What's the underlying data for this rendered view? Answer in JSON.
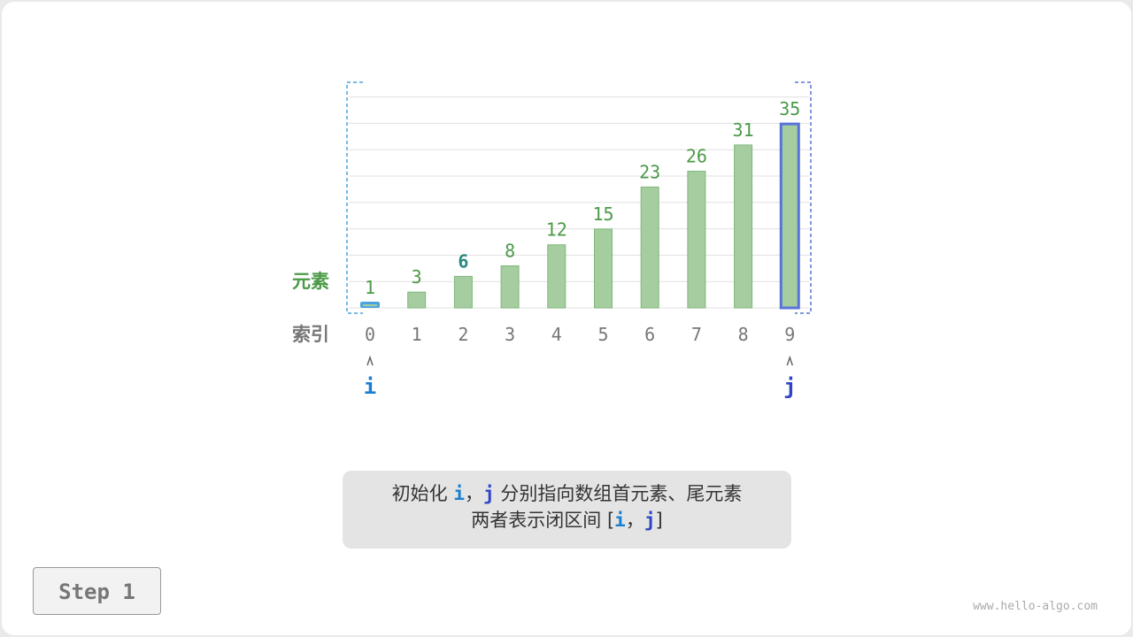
{
  "diagram": {
    "row_labels": {
      "elements": "元素",
      "index": "索引"
    },
    "values": [
      1,
      3,
      6,
      8,
      12,
      15,
      23,
      26,
      31,
      35
    ],
    "indices": [
      "0",
      "1",
      "2",
      "3",
      "4",
      "5",
      "6",
      "7",
      "8",
      "9"
    ],
    "highlighted_value_index": 2,
    "pointers": [
      {
        "label": "i",
        "index": 0,
        "color": "#1a7fd0"
      },
      {
        "label": "j",
        "index": 9,
        "color": "#2f45c8"
      }
    ],
    "colors": {
      "bar_fill": "#a5cda0",
      "bar_stroke": "#7fb77a",
      "value_text": "#4a9a47",
      "highlight_value": "#2a8a80",
      "index_text": "#777777",
      "i_bracket": "#4aa3df",
      "j_bracket": "#5a73d9"
    }
  },
  "caption": {
    "line1_pre": "初始化 ",
    "i": "i",
    "comma": "，",
    "j": "j",
    "line1_post": " 分别指向数组首元素、尾元素",
    "line2_pre": "两者表示闭区间 [",
    "line2_post": "]"
  },
  "step_label": "Step 1",
  "watermark": "www.hello-algo.com"
}
